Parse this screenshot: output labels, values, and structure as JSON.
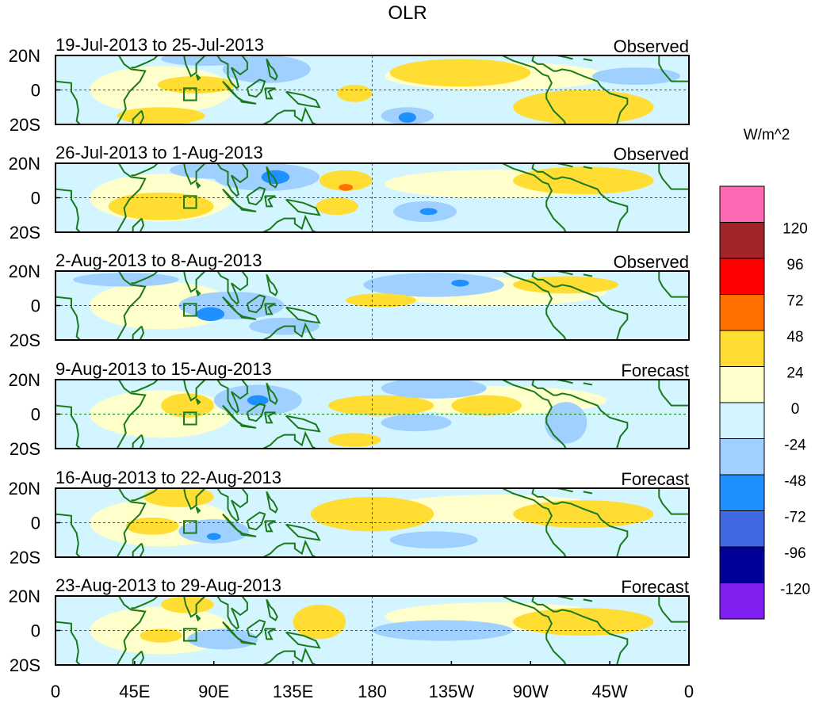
{
  "chart_data": {
    "type": "heatmap",
    "title": "OLR",
    "units_label": "W/m^2",
    "lon_range": [
      0,
      360
    ],
    "lat_range": [
      -20,
      20
    ],
    "y_tick_labels": [
      "20N",
      "0",
      "20S"
    ],
    "x_tick_labels": [
      "0",
      "45E",
      "90E",
      "135E",
      "180",
      "135W",
      "90W",
      "45W",
      "0"
    ],
    "colorbar": {
      "levels": [
        "120",
        "96",
        "72",
        "48",
        "24",
        "0",
        "-24",
        "-48",
        "-72",
        "-96",
        "-120"
      ],
      "colors": [
        "#ff69b4",
        "#a02428",
        "#ff0000",
        "#ff7000",
        "#ffdd33",
        "#ffffcc",
        "#d2f5ff",
        "#a0d0ff",
        "#1e90ff",
        "#4169e1",
        "#000099",
        "#8020f0"
      ]
    },
    "panels": [
      {
        "title": "19-Jul-2013 to 25-Jul-2013",
        "label": "Observed",
        "anomalies": [
          [
            80,
            3,
            22,
            5,
            1
          ],
          [
            170,
            -2,
            10,
            5,
            1
          ],
          [
            85,
            18,
            25,
            4,
            -1
          ],
          [
            120,
            12,
            25,
            8,
            -1
          ],
          [
            200,
            -15,
            15,
            5,
            -1
          ],
          [
            200,
            -16,
            5,
            3,
            -2
          ],
          [
            60,
            -15,
            25,
            5,
            1
          ],
          [
            230,
            10,
            40,
            8,
            1
          ],
          [
            300,
            -10,
            40,
            10,
            1
          ],
          [
            330,
            8,
            25,
            5,
            -1
          ]
        ]
      },
      {
        "title": "26-Jul-2013 to 1-Aug-2013",
        "label": "Observed",
        "anomalies": [
          [
            165,
            10,
            15,
            6,
            1
          ],
          [
            165,
            6,
            4,
            2,
            3
          ],
          [
            120,
            12,
            30,
            8,
            -1
          ],
          [
            125,
            12,
            8,
            4,
            -2
          ],
          [
            210,
            -8,
            18,
            6,
            -1
          ],
          [
            212,
            -8,
            5,
            2,
            -2
          ],
          [
            160,
            -5,
            12,
            5,
            1
          ],
          [
            300,
            10,
            40,
            8,
            1
          ],
          [
            60,
            -5,
            30,
            8,
            1
          ],
          [
            90,
            16,
            25,
            5,
            -1
          ]
        ]
      },
      {
        "title": "2-Aug-2013 to 8-Aug-2013",
        "label": "Observed",
        "anomalies": [
          [
            100,
            0,
            30,
            8,
            -1
          ],
          [
            88,
            -5,
            8,
            4,
            -2
          ],
          [
            215,
            12,
            40,
            7,
            -1
          ],
          [
            230,
            13,
            5,
            2,
            -2
          ],
          [
            185,
            3,
            20,
            4,
            1
          ],
          [
            290,
            12,
            30,
            5,
            1
          ],
          [
            40,
            15,
            30,
            4,
            -1
          ],
          [
            130,
            -12,
            20,
            5,
            -1
          ]
        ]
      },
      {
        "title": "9-Aug-2013 to 15-Aug-2013",
        "label": "Forecast",
        "anomalies": [
          [
            115,
            8,
            25,
            9,
            -1
          ],
          [
            115,
            8,
            6,
            3,
            -2
          ],
          [
            185,
            5,
            30,
            6,
            1
          ],
          [
            215,
            15,
            30,
            6,
            -1
          ],
          [
            205,
            -5,
            20,
            5,
            -1
          ],
          [
            290,
            -5,
            12,
            12,
            -1
          ],
          [
            75,
            5,
            15,
            7,
            1
          ],
          [
            170,
            -15,
            15,
            4,
            1
          ],
          [
            245,
            5,
            20,
            6,
            1
          ]
        ]
      },
      {
        "title": "16-Aug-2013 to 22-Aug-2013",
        "label": "Forecast",
        "anomalies": [
          [
            180,
            5,
            35,
            10,
            1
          ],
          [
            90,
            -5,
            20,
            7,
            -1
          ],
          [
            90,
            -8,
            4,
            2,
            -2
          ],
          [
            55,
            -2,
            15,
            5,
            1
          ],
          [
            70,
            15,
            20,
            6,
            1
          ],
          [
            215,
            -10,
            25,
            5,
            -1
          ],
          [
            300,
            5,
            40,
            8,
            1
          ]
        ]
      },
      {
        "title": "23-Aug-2013 to 29-Aug-2013",
        "label": "Forecast",
        "anomalies": [
          [
            150,
            5,
            15,
            10,
            1
          ],
          [
            95,
            -5,
            20,
            6,
            -1
          ],
          [
            60,
            -3,
            12,
            4,
            1
          ],
          [
            75,
            15,
            15,
            5,
            1
          ],
          [
            220,
            0,
            40,
            6,
            -1
          ],
          [
            300,
            5,
            40,
            8,
            1
          ]
        ]
      }
    ]
  }
}
